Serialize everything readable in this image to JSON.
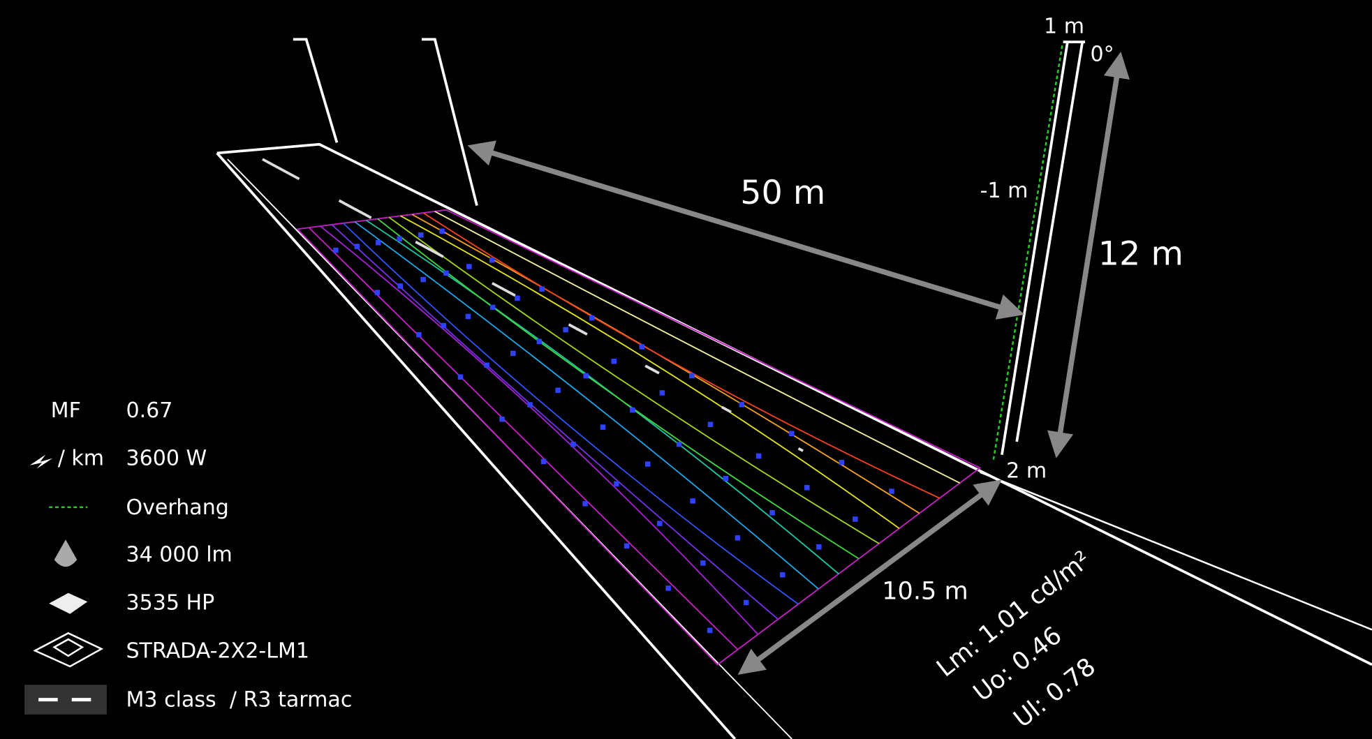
{
  "dimensions": {
    "pole_top": "1 m",
    "tilt": "0°",
    "overhang": "-1 m",
    "spacing": "50 m",
    "height": "12 m",
    "setback": "2 m",
    "road_width": "10.5 m"
  },
  "results": [
    "Lm: 1.01 cd/m²",
    "Uo: 0.46",
    "Ul: 0.78"
  ],
  "legend": [
    {
      "label": "MF",
      "value": "0.67"
    },
    {
      "label": "/ km",
      "value": "3600 W"
    },
    {
      "value": "Overhang"
    },
    {
      "value": "34 000 lm"
    },
    {
      "value": "3535 HP"
    },
    {
      "value": "STRADA-2X2-LM1"
    },
    {
      "value": "M3 class  / R3 tarmac"
    }
  ]
}
